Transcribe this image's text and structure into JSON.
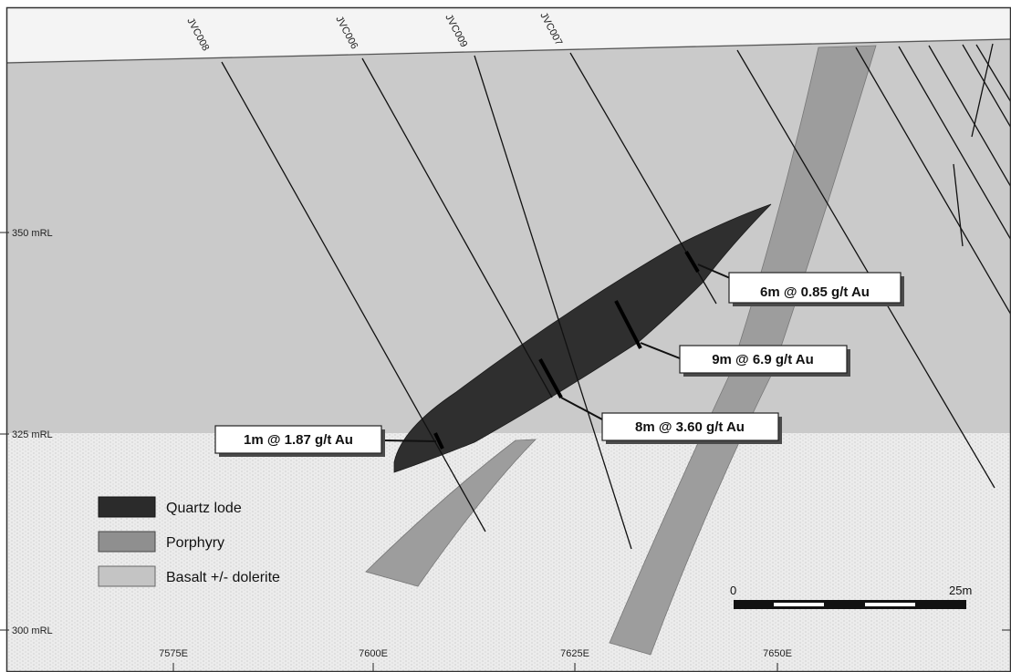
{
  "drillholes": [
    "JVC008",
    "JVC006",
    "JVC009",
    "JVC007"
  ],
  "rl_labels": [
    "350 mRL",
    "325 mRL",
    "300 mRL"
  ],
  "easting_labels": [
    "7575E",
    "7600E",
    "7625E",
    "7650E"
  ],
  "intercepts": [
    {
      "id": "int-6m",
      "text": "6m @ 0.85 g/t Au"
    },
    {
      "id": "int-9m",
      "text": "9m @ 6.9 g/t Au"
    },
    {
      "id": "int-8m",
      "text": "8m @ 3.60 g/t Au"
    },
    {
      "id": "int-1m",
      "text": "1m @ 1.87 g/t Au"
    }
  ],
  "legend": [
    {
      "label": "Quartz lode",
      "fill": "#2b2b2b"
    },
    {
      "label": "Porphyry",
      "fill": "#8f8f8f"
    },
    {
      "label": "Basalt +/- dolerite",
      "fill": "#c4c4c4"
    }
  ],
  "scale": {
    "start": "0",
    "end": "25m"
  },
  "colors": {
    "background_upper": "#c9c9c9",
    "basalt": "#efefef",
    "porphyry": "#9b9b9b",
    "quartz_lode": "#2e2e2e",
    "line": "#111111"
  }
}
